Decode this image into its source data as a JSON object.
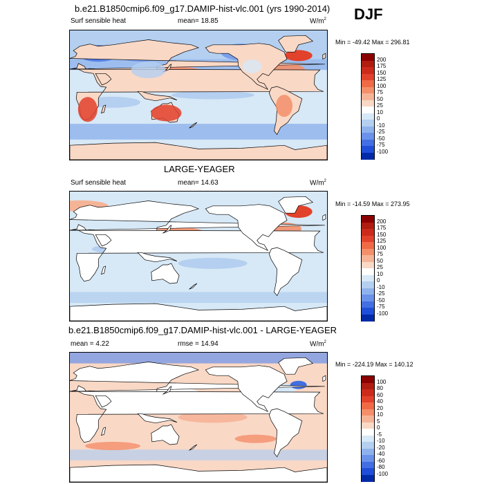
{
  "season": "DJF",
  "panels": [
    {
      "id": "p1",
      "title": "b.e21.B1850cmip6.f09_g17.DAMIP-hist-vlc.001 (yrs 1990-2014)",
      "left_label": "Surf sensible heat",
      "center_label": "mean=  18.85",
      "units": "W/m",
      "units_sup": "2",
      "minmax": "Min = -49.42 Max = 296.81",
      "colorbar_labels": [
        "200",
        "175",
        "150",
        "125",
        "100",
        "75",
        "50",
        "25",
        "10",
        "0",
        "-10",
        "-25",
        "-50",
        "-75",
        "-100"
      ],
      "colorbar_colors": [
        "#8b0000",
        "#b01c10",
        "#cc2a1a",
        "#e2412b",
        "#ef6a45",
        "#f48f6a",
        "#f6b497",
        "#f9d8c6",
        "#ffffff",
        "#d7e8f6",
        "#b4cff0",
        "#8fb2ec",
        "#6a92ea",
        "#436fe3",
        "#1f4fd8",
        "#002aa8"
      ],
      "map_style": "full"
    },
    {
      "id": "p2",
      "title": "LARGE-YEAGER",
      "left_label": "Surf sensible heat",
      "center_label": "mean=  14.63",
      "units": "W/m",
      "units_sup": "2",
      "minmax": "Min = -14.59 Max = 273.95",
      "colorbar_labels": [
        "200",
        "175",
        "150",
        "125",
        "100",
        "75",
        "50",
        "25",
        "10",
        "0",
        "-10",
        "-25",
        "-50",
        "-75",
        "-100"
      ],
      "colorbar_colors": [
        "#8b0000",
        "#b01c10",
        "#cc2a1a",
        "#e2412b",
        "#ef6a45",
        "#f48f6a",
        "#f6b497",
        "#f9d8c6",
        "#ffffff",
        "#d7e8f6",
        "#b4cff0",
        "#8fb2ec",
        "#6a92ea",
        "#436fe3",
        "#1f4fd8",
        "#002aa8"
      ],
      "map_style": "ocean"
    },
    {
      "id": "p3",
      "title": "b.e21.B1850cmip6.f09_g17.DAMIP-hist-vlc.001 - LARGE-YEAGER",
      "left_label": "mean =   4.22",
      "center_label": "rmse =  14.94",
      "units": "W/m",
      "units_sup": "2",
      "minmax": "Min = -224.19 Max = 140.12",
      "colorbar_labels": [
        "100",
        "80",
        "60",
        "40",
        "20",
        "10",
        "5",
        "0",
        "-5",
        "-10",
        "-20",
        "-40",
        "-60",
        "-80",
        "-100"
      ],
      "colorbar_colors": [
        "#8b0000",
        "#b01c10",
        "#cc2a1a",
        "#e2412b",
        "#ef6a45",
        "#f48f6a",
        "#f6b497",
        "#f9d8c6",
        "#ffffff",
        "#d7e8f6",
        "#b4cff0",
        "#8fb2ec",
        "#6a92ea",
        "#436fe3",
        "#1f4fd8",
        "#002aa8"
      ],
      "map_style": "diff"
    }
  ]
}
